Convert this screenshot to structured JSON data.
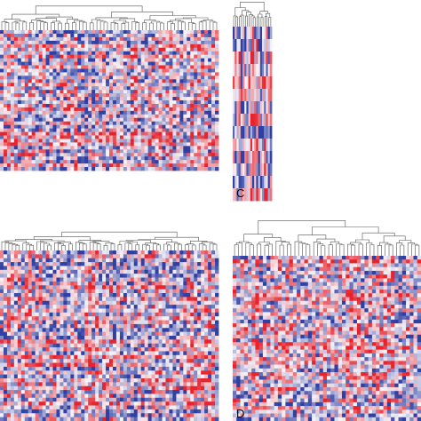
{
  "colors": {
    "high": "#e8232c",
    "mid": "#f6f4f8",
    "low": "#2f3fa3",
    "dendrogram": "#555555",
    "background": "#ffffff"
  },
  "chart_data": [
    {
      "type": "heatmap",
      "panel": "top-left",
      "label": "",
      "rows": 40,
      "cols": 62,
      "value_range": [
        -1,
        1
      ],
      "seed": 11,
      "dendrogram": "top",
      "legend": "none",
      "grid": false
    },
    {
      "type": "heatmap",
      "panel": "top-right",
      "label": "C",
      "rows": 14,
      "cols": 20,
      "value_range": [
        -1,
        1
      ],
      "seed": 23,
      "dendrogram": "top",
      "legend": "none",
      "grid": false
    },
    {
      "type": "heatmap",
      "panel": "bottom-left",
      "label": "",
      "rows": 44,
      "cols": 62,
      "value_range": [
        -1,
        1
      ],
      "seed": 37,
      "dendrogram": "top",
      "legend": "none",
      "grid": false
    },
    {
      "type": "heatmap",
      "panel": "bottom-right",
      "label": "D",
      "rows": 44,
      "cols": 50,
      "value_range": [
        -1,
        1
      ],
      "seed": 51,
      "dendrogram": "top",
      "legend": "none",
      "grid": false
    }
  ]
}
